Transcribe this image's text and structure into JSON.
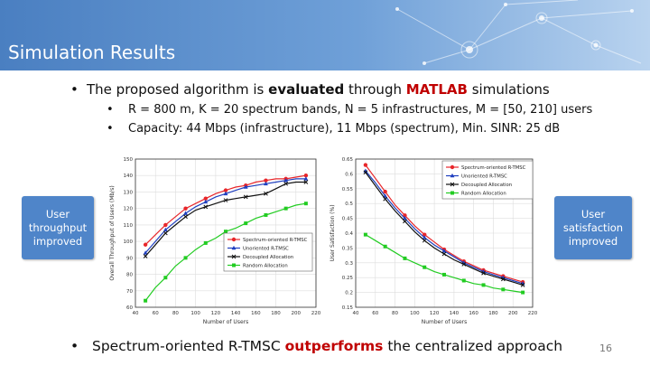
{
  "slide": {
    "title": "Simulation Results",
    "bullet_main": {
      "prefix": "The proposed algorithm is ",
      "bold": "evaluated",
      "middle": " through ",
      "red": "MATLAB",
      "suffix": " simulations"
    },
    "sub_bullets": [
      "R = 800 m, K = 20 spectrum bands, N = 5 infrastructures, M = [50, 210] users",
      "Capacity: 44 Mbps (infrastructure), 11 Mbps (spectrum), Min. SINR: 25 dB"
    ],
    "callout_left": "User throughput improved",
    "callout_right": "User satisfaction improved",
    "bottom_bullet": {
      "prefix": "Spectrum-oriented R-TMSC ",
      "red": "outperforms",
      "suffix": " the centralized approach"
    },
    "page_number": "16"
  },
  "chart_data": [
    {
      "type": "line",
      "xlabel": "Number of Users",
      "ylabel": "Overall Throughput of Users (Mb/s)",
      "xlim": [
        40,
        220
      ],
      "ylim": [
        60,
        150
      ],
      "xticks": [
        40,
        60,
        80,
        100,
        120,
        140,
        160,
        180,
        200,
        220
      ],
      "yticks": [
        60,
        70,
        80,
        90,
        100,
        110,
        120,
        130,
        140,
        150
      ],
      "legend_position": "bottom-right",
      "x": [
        50,
        60,
        70,
        80,
        90,
        100,
        110,
        120,
        130,
        140,
        150,
        160,
        170,
        180,
        190,
        200,
        210
      ],
      "series": [
        {
          "name": "Spectrum-oriented R-TMSC",
          "color": "#e8262a",
          "marker": "circle",
          "values": [
            98,
            104,
            110,
            115,
            120,
            123,
            126,
            129,
            131,
            133,
            134,
            136,
            137,
            138,
            138,
            139,
            140
          ]
        },
        {
          "name": "Unoriented R-TMSC",
          "color": "#1f3fbf",
          "marker": "triangle",
          "values": [
            93,
            100,
            107,
            112,
            117,
            121,
            124,
            127,
            129,
            131,
            133,
            134,
            135,
            136,
            137,
            138,
            138
          ]
        },
        {
          "name": "Decoupled Allocation",
          "color": "#111111",
          "marker": "cross",
          "values": [
            91,
            98,
            105,
            110,
            115,
            119,
            121,
            123,
            125,
            126,
            127,
            128,
            129,
            132,
            135,
            136,
            136
          ]
        },
        {
          "name": "Random Allocation",
          "color": "#22cc22",
          "marker": "square",
          "values": [
            64,
            72,
            78,
            85,
            90,
            95,
            99,
            102,
            106,
            108,
            111,
            114,
            116,
            118,
            120,
            122,
            123
          ]
        }
      ]
    },
    {
      "type": "line",
      "xlabel": "Number of Users",
      "ylabel": "User Satisfaction (%)",
      "xlim": [
        40,
        220
      ],
      "ylim": [
        0.15,
        0.65
      ],
      "xticks": [
        40,
        60,
        80,
        100,
        120,
        140,
        160,
        180,
        200,
        220
      ],
      "yticks": [
        0.15,
        0.2,
        0.25,
        0.3,
        0.35,
        0.4,
        0.45,
        0.5,
        0.55,
        0.6,
        0.65
      ],
      "legend_position": "top-right",
      "x": [
        50,
        60,
        70,
        80,
        90,
        100,
        110,
        120,
        130,
        140,
        150,
        160,
        170,
        180,
        190,
        200,
        210
      ],
      "series": [
        {
          "name": "Spectrum-oriented R-TMSC",
          "color": "#e8262a",
          "marker": "circle",
          "values": [
            0.63,
            0.585,
            0.54,
            0.495,
            0.46,
            0.425,
            0.395,
            0.37,
            0.345,
            0.325,
            0.305,
            0.29,
            0.275,
            0.265,
            0.255,
            0.245,
            0.235
          ]
        },
        {
          "name": "Unoriented R-TMSC",
          "color": "#1f3fbf",
          "marker": "triangle",
          "values": [
            0.61,
            0.57,
            0.525,
            0.485,
            0.45,
            0.415,
            0.385,
            0.36,
            0.34,
            0.32,
            0.3,
            0.285,
            0.27,
            0.26,
            0.25,
            0.24,
            0.23
          ]
        },
        {
          "name": "Decoupled Allocation",
          "color": "#111111",
          "marker": "cross",
          "values": [
            0.605,
            0.56,
            0.515,
            0.475,
            0.44,
            0.405,
            0.375,
            0.35,
            0.33,
            0.31,
            0.295,
            0.28,
            0.265,
            0.255,
            0.245,
            0.235,
            0.225
          ]
        },
        {
          "name": "Random Allocation",
          "color": "#22cc22",
          "marker": "square",
          "values": [
            0.395,
            0.375,
            0.355,
            0.335,
            0.315,
            0.3,
            0.285,
            0.27,
            0.26,
            0.25,
            0.24,
            0.23,
            0.225,
            0.215,
            0.21,
            0.205,
            0.2
          ]
        }
      ]
    }
  ]
}
